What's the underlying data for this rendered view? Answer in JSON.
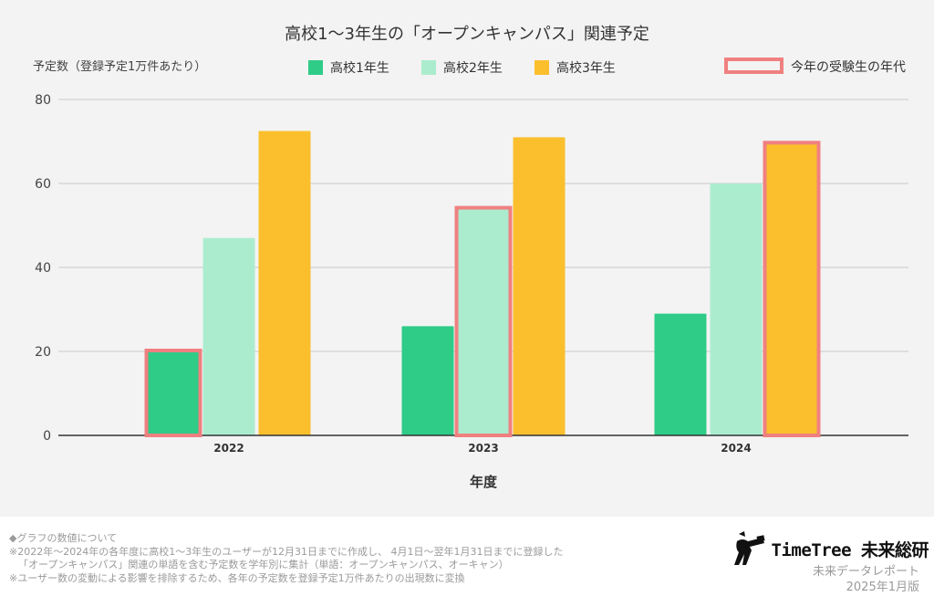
{
  "chart_data": {
    "type": "bar",
    "title": "高校1〜3年生の「オープンキャンパス」関連予定",
    "ylabel": "予定数（登録予定1万件あたり）",
    "xlabel": "年度",
    "categories": [
      "2022",
      "2023",
      "2024"
    ],
    "series": [
      {
        "name": "高校1年生",
        "color": "#2ecc87",
        "values": [
          20,
          26,
          29
        ]
      },
      {
        "name": "高校2年生",
        "color": "#abeccf",
        "values": [
          47,
          54,
          60
        ]
      },
      {
        "name": "高校3年生",
        "color": "#fbbf2e",
        "values": [
          72.5,
          71,
          69.5
        ]
      }
    ],
    "highlight": {
      "name": "今年の受験生の年代",
      "color": "#f08080",
      "bars": [
        {
          "category": "2022",
          "series": "高校1年生"
        },
        {
          "category": "2023",
          "series": "高校2年生"
        },
        {
          "category": "2024",
          "series": "高校3年生"
        }
      ]
    },
    "ylim": [
      0,
      80
    ],
    "yticks": [
      0,
      20,
      40,
      60,
      80
    ],
    "grid": true,
    "legend_position": "top"
  },
  "footnotes": {
    "heading": "◆グラフの数値について",
    "line1": "※2022年〜2024年の各年度に高校1〜3年生のユーザーが12月31日までに作成し、 4月1日〜翌年1月31日までに登録した",
    "line2": "「オープンキャンパス」関連の単語を含む予定数を学年別に集計（単語：オープンキャンパス、オーキャン）",
    "line3": "※ユーザー数の変動による影響を排除するため、各年の予定数を登録予定1万件あたりの出現数に変換"
  },
  "brand": {
    "name": "TimeTree 未来総研",
    "subtitle": "未来データレポート",
    "date": "2025年1月版",
    "logo_icon": "telescope-figure-icon"
  }
}
